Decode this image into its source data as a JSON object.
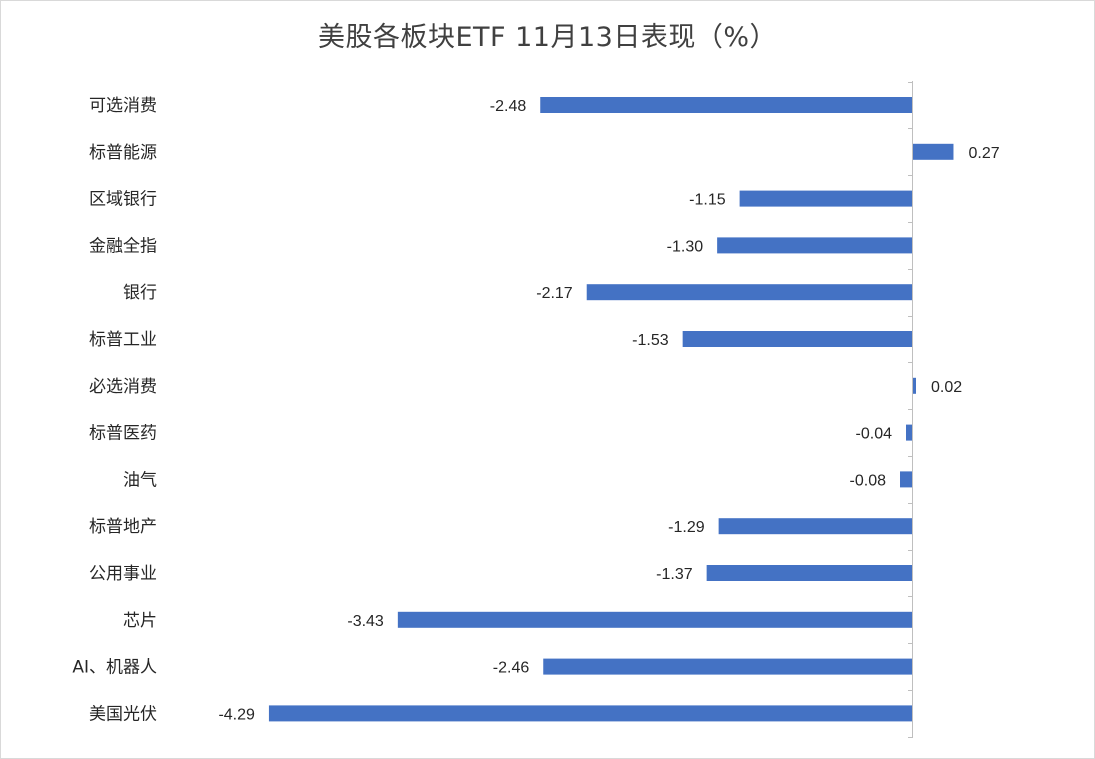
{
  "chart_data": {
    "type": "bar",
    "orientation": "horizontal",
    "title": "美股各板块ETF  11月13日表现（%）",
    "categories": [
      "可选消费",
      "标普能源",
      "区域银行",
      "金融全指",
      "银行",
      "标普工业",
      "必选消费",
      "标普医药",
      "油气",
      "标普地产",
      "公用事业",
      "芯片",
      "AI、机器人",
      "美国光伏"
    ],
    "values": [
      -2.48,
      0.27,
      -1.15,
      -1.3,
      -2.17,
      -1.53,
      0.02,
      -0.04,
      -0.08,
      -1.29,
      -1.37,
      -3.43,
      -2.46,
      -4.29
    ],
    "value_labels": [
      "-2.48",
      "0.27",
      "-1.15",
      "-1.30",
      "-2.17",
      "-1.53",
      "0.02",
      "-0.04",
      "-0.08",
      "-1.29",
      "-1.37",
      "-3.43",
      "-2.46",
      "-4.29"
    ],
    "bar_color": "#4472c4",
    "axis_color": "#bfbfbf",
    "grid": false,
    "legend": "none"
  }
}
